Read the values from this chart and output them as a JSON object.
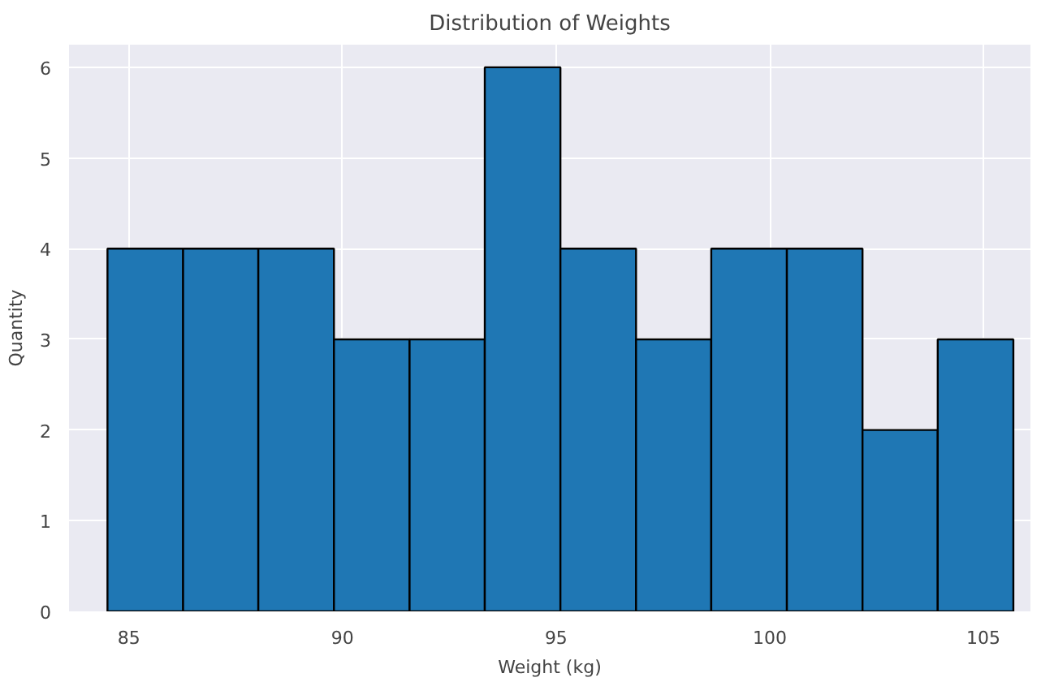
{
  "chart_data": {
    "type": "histogram",
    "title": "Distribution of Weights",
    "xlabel": "Weight (kg)",
    "ylabel": "Quantity",
    "bins": [
      84.5,
      86.27,
      88.03,
      89.8,
      91.57,
      93.33,
      95.1,
      96.87,
      98.63,
      100.4,
      102.17,
      103.93,
      105.7
    ],
    "values": [
      4,
      4,
      4,
      3,
      3,
      6,
      4,
      3,
      4,
      4,
      2,
      3
    ],
    "color": "#1f77b4",
    "xlim": [
      83.6,
      106.1
    ],
    "ylim": [
      0,
      6.25
    ],
    "xticks": [
      85,
      90,
      95,
      100,
      105
    ],
    "yticks": [
      0,
      1,
      2,
      3,
      4,
      5,
      6
    ],
    "grid": true
  }
}
